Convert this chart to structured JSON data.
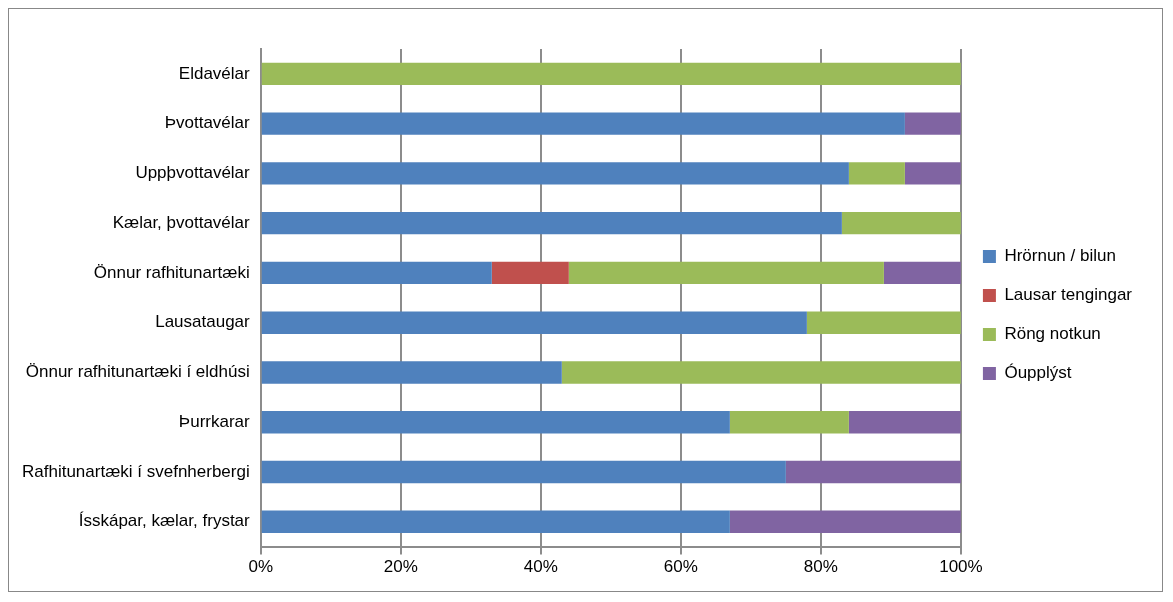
{
  "chart_data": {
    "type": "bar",
    "orientation": "horizontal",
    "stacked": true,
    "categories": [
      "Eldavélar",
      "Þvottavélar",
      "Uppþvottavélar",
      "Kælar, þvottavélar",
      "Önnur rafhitunartæki",
      "Lausataugar",
      "Önnur rafhitunartæki í eldhúsi",
      "Þurrkarar",
      "Rafhitunartæki í svefnherbergi",
      "Ísskápar, kælar, frystar"
    ],
    "series": [
      {
        "name": "Hrörnun / bilun",
        "color": "#4f81bd",
        "values": [
          0,
          92,
          84,
          83,
          33,
          78,
          43,
          67,
          75,
          67
        ]
      },
      {
        "name": "Lausar tengingar",
        "color": "#c0504d",
        "values": [
          0,
          0,
          0,
          0,
          11,
          0,
          0,
          0,
          0,
          0
        ]
      },
      {
        "name": "Röng notkun",
        "color": "#9bbb59",
        "values": [
          100,
          0,
          8,
          17,
          45,
          22,
          57,
          17,
          0,
          0
        ]
      },
      {
        "name": "Óupplýst",
        "color": "#8064a2",
        "values": [
          0,
          8,
          8,
          0,
          11,
          0,
          0,
          16,
          25,
          33
        ]
      }
    ],
    "xlim": [
      0,
      100
    ],
    "xticks": [
      {
        "value": 0,
        "label": "0%"
      },
      {
        "value": 20,
        "label": "20%"
      },
      {
        "value": 40,
        "label": "40%"
      },
      {
        "value": 60,
        "label": "60%"
      },
      {
        "value": 80,
        "label": "80%"
      },
      {
        "value": 100,
        "label": "100%"
      }
    ],
    "grid": "x",
    "legend": "right"
  }
}
